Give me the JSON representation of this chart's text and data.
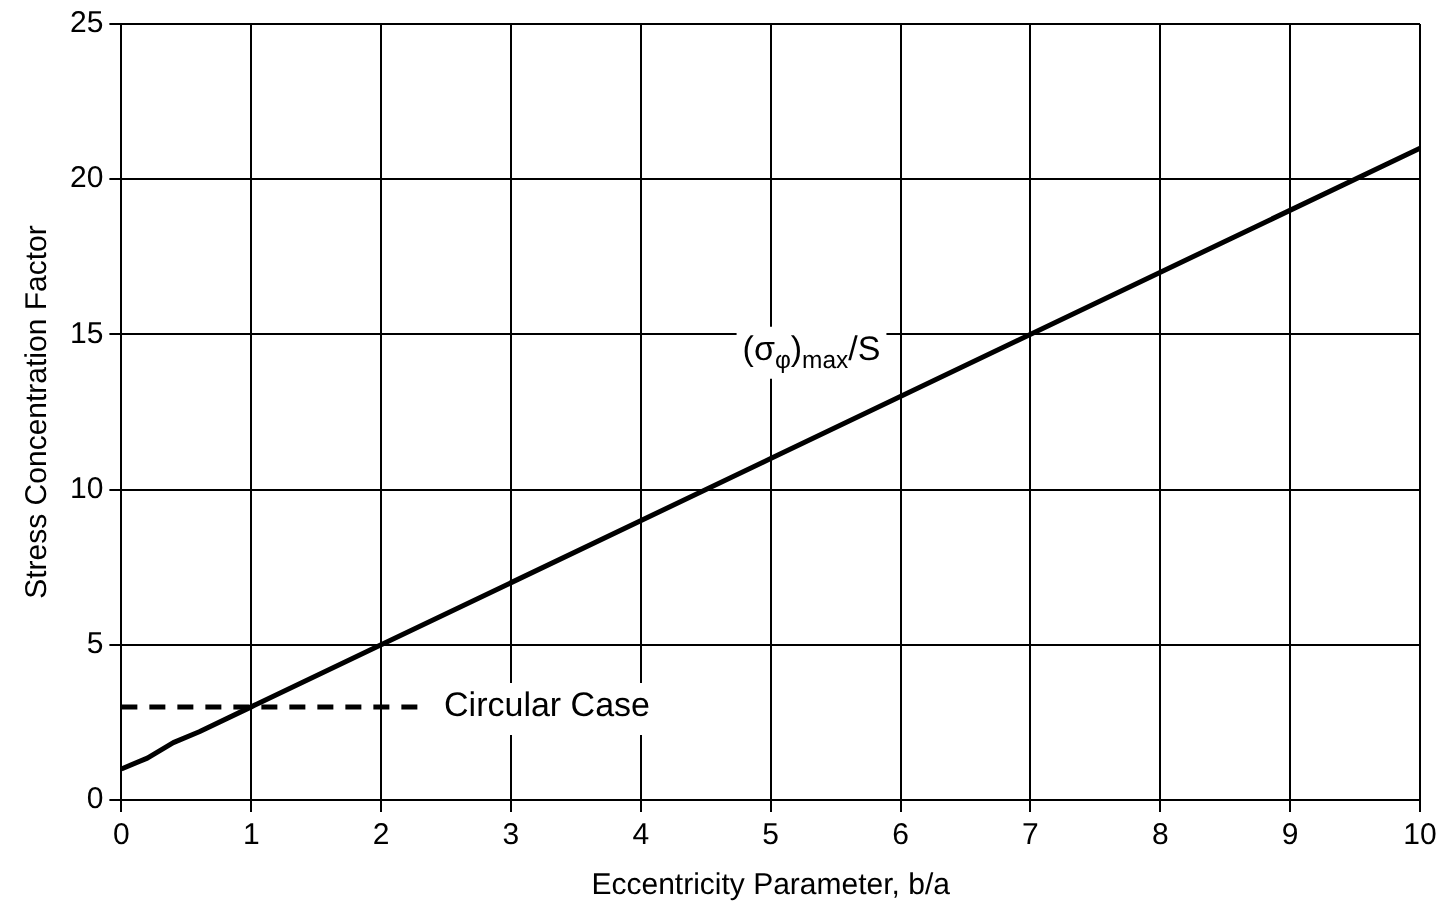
{
  "chart_data": {
    "type": "line",
    "xlabel": "Eccentricity Parameter, b/a",
    "ylabel": "Stress Concentration Factor",
    "series": [
      {
        "name": "(σ$_{φ}$)$_{max}$/S",
        "color": "#000000",
        "x": [
          0,
          0.2,
          0.4,
          0.6,
          1,
          2,
          5,
          10
        ],
        "values": [
          1,
          1.35,
          1.85,
          2.2,
          3,
          5,
          11,
          21
        ],
        "line_style": "solid"
      },
      {
        "name": "Circular Case",
        "color": "#000000",
        "x": [
          0,
          2.3
        ],
        "values": [
          3,
          3
        ],
        "line_style": "dashed"
      }
    ],
    "xlim": [
      0,
      10
    ],
    "xticks": [
      0,
      1,
      2,
      3,
      4,
      5,
      6,
      7,
      8,
      9,
      10
    ],
    "ylim": [
      0,
      25
    ],
    "yticks": [
      0,
      5,
      10,
      15,
      20,
      25
    ],
    "grid": true,
    "legend": false,
    "marker": "none"
  }
}
